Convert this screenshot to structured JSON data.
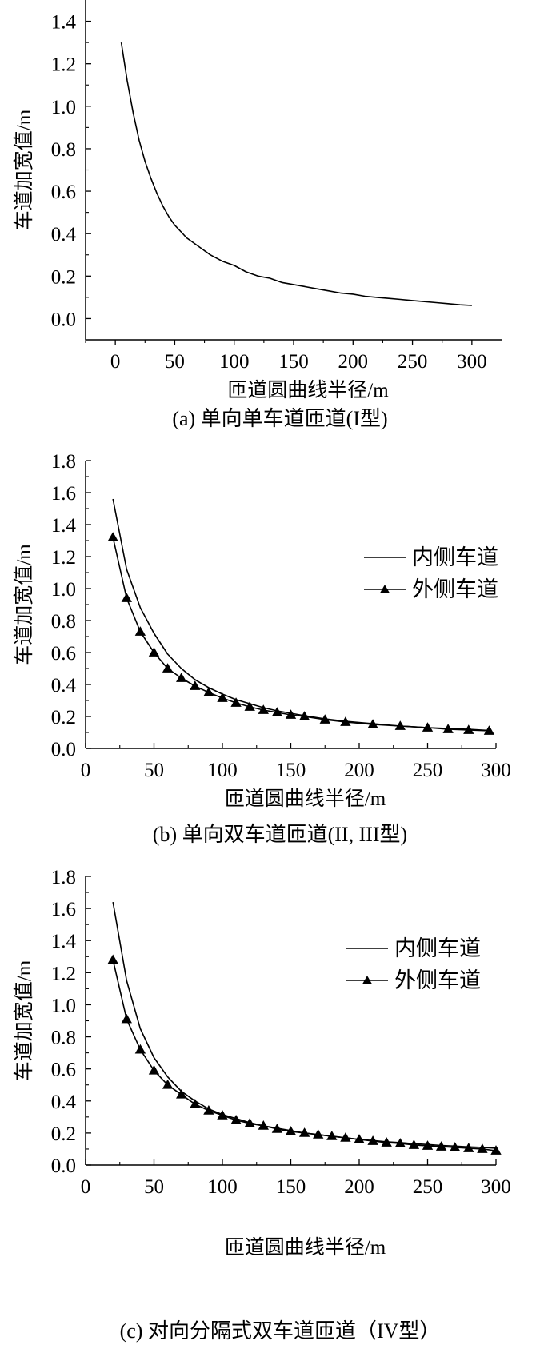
{
  "chart_data": [
    {
      "type": "line",
      "caption": "(a) 单向单车道匝道(I型)",
      "xlabel": "匝道圆曲线半径/m",
      "ylabel": "车道加宽值/m",
      "xlim": [
        -25,
        325
      ],
      "ylim": [
        -0.1,
        1.5
      ],
      "xticks": [
        0,
        50,
        100,
        150,
        200,
        250,
        300
      ],
      "yticks": [
        0.0,
        0.2,
        0.4,
        0.6,
        0.8,
        1.0,
        1.2,
        1.4
      ],
      "ytick_labels": [
        "0.0",
        "0.2",
        "0.4",
        "0.6",
        "0.8",
        "1.0",
        "1.2",
        "1.4"
      ],
      "axes": "left-bottom",
      "grid": false,
      "legend": "none",
      "series": [
        {
          "style": "line",
          "x": [
            5,
            10,
            15,
            20,
            25,
            30,
            35,
            40,
            45,
            50,
            55,
            60,
            70,
            80,
            90,
            100,
            110,
            120,
            130,
            140,
            150,
            160,
            170,
            180,
            190,
            200,
            210,
            220,
            230,
            240,
            250,
            260,
            270,
            280,
            290,
            300
          ],
          "y": [
            1.3,
            1.12,
            0.97,
            0.84,
            0.74,
            0.66,
            0.59,
            0.53,
            0.48,
            0.44,
            0.41,
            0.38,
            0.34,
            0.3,
            0.27,
            0.25,
            0.22,
            0.2,
            0.19,
            0.17,
            0.16,
            0.15,
            0.14,
            0.13,
            0.12,
            0.115,
            0.105,
            0.1,
            0.095,
            0.09,
            0.085,
            0.08,
            0.075,
            0.07,
            0.065,
            0.062
          ]
        }
      ]
    },
    {
      "type": "line",
      "caption": "(b) 单向双车道匝道(II, III型)",
      "xlabel": "匝道圆曲线半径/m",
      "ylabel": "车道加宽值/m",
      "xlim": [
        0,
        300
      ],
      "ylim": [
        0,
        1.8
      ],
      "xticks": [
        0,
        50,
        100,
        150,
        200,
        250,
        300
      ],
      "yticks": [
        0.0,
        0.2,
        0.4,
        0.6,
        0.8,
        1.0,
        1.2,
        1.4,
        1.6,
        1.8
      ],
      "ytick_labels": [
        "0.0",
        "0.2",
        "0.4",
        "0.6",
        "0.8",
        "1.0",
        "1.2",
        "1.4",
        "1.6",
        "1.8"
      ],
      "axes": "left-bottom",
      "grid": false,
      "legend": "right",
      "series": [
        {
          "name": "内侧车道",
          "style": "line",
          "x": [
            20,
            30,
            40,
            50,
            60,
            70,
            80,
            90,
            100,
            110,
            120,
            130,
            140,
            150,
            160,
            175,
            190,
            210,
            230,
            250,
            265,
            280,
            295
          ],
          "y": [
            1.56,
            1.12,
            0.88,
            0.72,
            0.59,
            0.5,
            0.43,
            0.38,
            0.34,
            0.305,
            0.28,
            0.255,
            0.235,
            0.22,
            0.205,
            0.185,
            0.17,
            0.155,
            0.14,
            0.13,
            0.125,
            0.12,
            0.112
          ]
        },
        {
          "name": "外侧车道",
          "style": "line-triangle",
          "x": [
            20,
            30,
            40,
            50,
            60,
            70,
            80,
            90,
            100,
            110,
            120,
            130,
            140,
            150,
            160,
            175,
            190,
            210,
            230,
            250,
            265,
            280,
            295
          ],
          "y": [
            1.32,
            0.94,
            0.73,
            0.6,
            0.5,
            0.44,
            0.39,
            0.35,
            0.315,
            0.285,
            0.26,
            0.24,
            0.225,
            0.21,
            0.2,
            0.18,
            0.165,
            0.15,
            0.14,
            0.13,
            0.12,
            0.115,
            0.11
          ]
        }
      ]
    },
    {
      "type": "line",
      "caption": "(c) 对向分隔式双车道匝道（IV型）",
      "xlabel": "匝道圆曲线半径/m",
      "ylabel": "车道加宽值/m",
      "xlim": [
        0,
        300
      ],
      "ylim": [
        0,
        1.8
      ],
      "xticks": [
        0,
        50,
        100,
        150,
        200,
        250,
        300
      ],
      "yticks": [
        0.0,
        0.2,
        0.4,
        0.6,
        0.8,
        1.0,
        1.2,
        1.4,
        1.6,
        1.8
      ],
      "ytick_labels": [
        "0.0",
        "0.2",
        "0.4",
        "0.6",
        "0.8",
        "1.0",
        "1.2",
        "1.4",
        "1.6",
        "1.8"
      ],
      "axes": "left-bottom",
      "grid": false,
      "legend": "right",
      "series": [
        {
          "name": "内侧车道",
          "style": "line",
          "x": [
            20,
            30,
            40,
            50,
            60,
            70,
            80,
            90,
            100,
            110,
            120,
            130,
            140,
            150,
            160,
            170,
            180,
            190,
            200,
            210,
            220,
            230,
            240,
            250,
            260,
            270,
            280,
            290,
            300
          ],
          "y": [
            1.64,
            1.15,
            0.85,
            0.67,
            0.55,
            0.46,
            0.4,
            0.35,
            0.315,
            0.29,
            0.265,
            0.245,
            0.23,
            0.215,
            0.2,
            0.19,
            0.18,
            0.17,
            0.16,
            0.153,
            0.145,
            0.14,
            0.133,
            0.128,
            0.122,
            0.118,
            0.113,
            0.11,
            0.105
          ]
        },
        {
          "name": "外侧车道",
          "style": "line-triangle",
          "x": [
            20,
            30,
            40,
            50,
            60,
            70,
            80,
            90,
            100,
            110,
            120,
            130,
            140,
            150,
            160,
            170,
            180,
            190,
            200,
            210,
            220,
            230,
            240,
            250,
            260,
            270,
            280,
            290,
            300
          ],
          "y": [
            1.28,
            0.91,
            0.72,
            0.59,
            0.5,
            0.44,
            0.38,
            0.34,
            0.31,
            0.28,
            0.26,
            0.245,
            0.225,
            0.21,
            0.2,
            0.19,
            0.18,
            0.17,
            0.16,
            0.15,
            0.14,
            0.135,
            0.125,
            0.12,
            0.115,
            0.11,
            0.105,
            0.1,
            0.09
          ]
        }
      ]
    }
  ]
}
